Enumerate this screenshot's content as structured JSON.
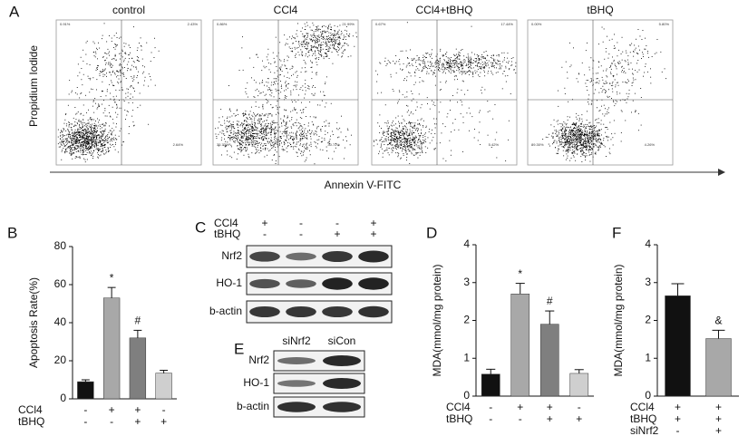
{
  "flow": {
    "panel": "A",
    "ylabel": "Propidium Iodide",
    "xlabel": "Annexin V-FITC",
    "plots": [
      {
        "title": "control",
        "quadrants": {
          "ul": "0.91%",
          "ur": "2.43%",
          "lr": "2.64%"
        }
      },
      {
        "title": "CCl4",
        "quadrants": {
          "ul": "0.86%",
          "ur": "21.99%",
          "ll": "35.73%",
          "lr": "30.72%"
        }
      },
      {
        "title": "CCl4+tBHQ",
        "quadrants": {
          "ul": "0.67%",
          "ur": "17.44%",
          "lr": "5.42%"
        }
      },
      {
        "title": "tBHQ",
        "quadrants": {
          "ul": "0.00%",
          "ur": "5.80%",
          "ll": "89.30%",
          "lr": "4.26%"
        }
      }
    ]
  },
  "chart_data": [
    {
      "type": "bar",
      "panel": "B",
      "ylabel": "Apoptosis Rate(%)",
      "values": [
        9,
        53,
        32,
        13.5
      ],
      "errors": [
        1,
        5.5,
        4,
        1.5
      ],
      "colors": [
        "#111111",
        "#a8a8a8",
        "#7f7f7f",
        "#cfcfcf"
      ],
      "annotations": [
        null,
        "*",
        "#",
        null
      ],
      "ylim": [
        0,
        80
      ],
      "yticks": [
        0,
        20,
        40,
        60,
        80
      ],
      "conditions": [
        {
          "label": "CCl4",
          "signs": [
            "-",
            "+",
            "+",
            "-"
          ]
        },
        {
          "label": "tBHQ",
          "signs": [
            "-",
            "-",
            "+",
            "+"
          ]
        }
      ]
    },
    {
      "type": "bar",
      "panel": "D",
      "ylabel": "MDA(mmol/mg protein)",
      "values": [
        0.58,
        2.7,
        1.9,
        0.6
      ],
      "errors": [
        0.13,
        0.28,
        0.35,
        0.1
      ],
      "colors": [
        "#111111",
        "#a8a8a8",
        "#7f7f7f",
        "#cfcfcf"
      ],
      "annotations": [
        null,
        "*",
        "#",
        null
      ],
      "ylim": [
        0,
        4
      ],
      "yticks": [
        0,
        1,
        2,
        3,
        4
      ],
      "conditions": [
        {
          "label": "CCl4",
          "signs": [
            "-",
            "+",
            "+",
            "-"
          ]
        },
        {
          "label": "tBHQ",
          "signs": [
            "-",
            "-",
            "+",
            "+"
          ]
        }
      ]
    },
    {
      "type": "bar",
      "panel": "F",
      "ylabel": "MDA(mmol/mg protein)",
      "values": [
        2.65,
        1.52
      ],
      "errors": [
        0.32,
        0.22
      ],
      "colors": [
        "#111111",
        "#a8a8a8"
      ],
      "annotations": [
        null,
        "&"
      ],
      "ylim": [
        0,
        4
      ],
      "yticks": [
        0,
        1,
        2,
        3,
        4
      ],
      "conditions": [
        {
          "label": "CCl4",
          "signs": [
            "+",
            "+"
          ]
        },
        {
          "label": "tBHQ",
          "signs": [
            "+",
            "+"
          ]
        },
        {
          "label": "siNrf2",
          "signs": [
            "-",
            "+"
          ]
        }
      ]
    }
  ],
  "blot_c": {
    "panel": "C",
    "conditions": [
      {
        "label": "CCl4",
        "signs": [
          "+",
          "-",
          "-",
          "+"
        ]
      },
      {
        "label": "tBHQ",
        "signs": [
          "-",
          "-",
          "+",
          "+"
        ]
      }
    ],
    "rows": [
      "Nrf2",
      "HO-1",
      "b-actin"
    ]
  },
  "blot_e": {
    "panel": "E",
    "columns": [
      "siNrf2",
      "siCon"
    ],
    "rows": [
      "Nrf2",
      "HO-1",
      "b-actin"
    ]
  }
}
